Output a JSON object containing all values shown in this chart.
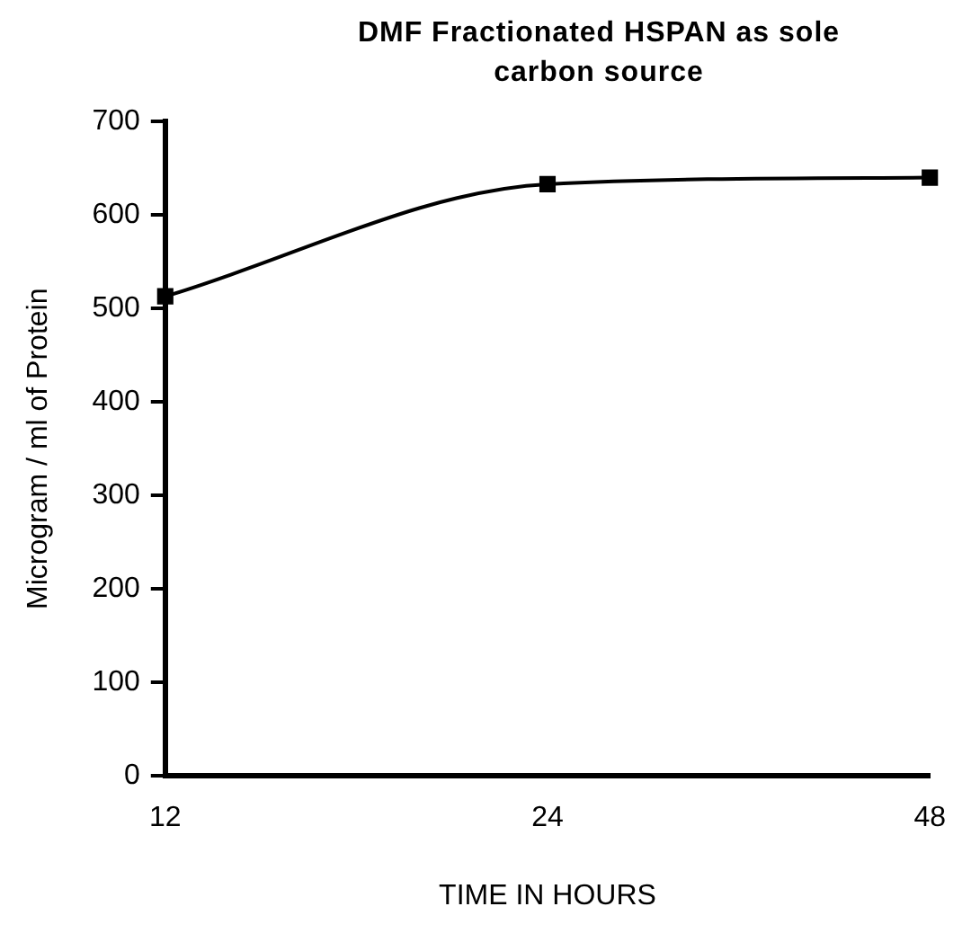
{
  "chart_data": {
    "type": "line",
    "title": "DMF Fractionated HSPAN as sole carbon source",
    "xlabel": "TIME IN HOURS",
    "ylabel": "Microgram / ml of Protein",
    "categories": [
      "12",
      "24",
      "48"
    ],
    "series": [
      {
        "color": "#000000",
        "values": [
          513,
          633,
          640
        ]
      }
    ],
    "ylim": [
      0,
      700
    ],
    "yticks": [
      0,
      100,
      200,
      300,
      400,
      500,
      600,
      700
    ],
    "grid": false,
    "legend": false,
    "marker": "square",
    "line_style": "solid"
  }
}
